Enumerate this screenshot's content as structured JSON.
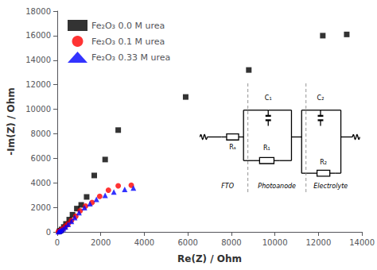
{
  "chart_data": {
    "type": "scatter",
    "x_label": "Re(Z) / Ohm",
    "y_label": "-Im(Z) / Ohm",
    "xlim": [
      0,
      14000
    ],
    "ylim": [
      0,
      18000
    ],
    "xticks": [
      0,
      2000,
      4000,
      6000,
      8000,
      10000,
      12000,
      14000
    ],
    "yticks": [
      0,
      2000,
      4000,
      6000,
      8000,
      10000,
      12000,
      14000,
      16000,
      18000
    ],
    "grid": false,
    "legend": "upper left",
    "series": [
      {
        "name": "Fe₂O₃ 0.0 M urea",
        "color": "black",
        "marker": "square",
        "x": [
          100,
          150,
          200,
          300,
          400,
          550,
          700,
          900,
          1100,
          1350,
          1700,
          2200,
          2800,
          5900,
          8800,
          12200,
          13300
        ],
        "values": [
          50,
          100,
          200,
          400,
          650,
          1000,
          1400,
          1900,
          2200,
          2850,
          4600,
          5900,
          8300,
          11000,
          13200,
          16000,
          16100
        ]
      },
      {
        "name": "Fe₂O₃ 0.1 M urea",
        "color": "red",
        "marker": "circle",
        "x": [
          50,
          100,
          150,
          200,
          280,
          380,
          500,
          650,
          850,
          1050,
          1300,
          1600,
          1950,
          2350,
          2800,
          3400
        ],
        "values": [
          20,
          50,
          100,
          170,
          290,
          460,
          660,
          920,
          1270,
          1720,
          2100,
          2400,
          2900,
          3400,
          3750,
          3800
        ]
      },
      {
        "name": "Fe₂O₃ 0.33 M urea",
        "color": "blue",
        "marker": "triangle",
        "x": [
          50,
          100,
          150,
          200,
          280,
          380,
          500,
          650,
          800,
          1000,
          1250,
          1500,
          1800,
          2200,
          2600,
          3100,
          3500
        ],
        "values": [
          18,
          45,
          90,
          155,
          260,
          410,
          610,
          860,
          1170,
          1570,
          1970,
          2300,
          2650,
          2980,
          3250,
          3470,
          3580
        ]
      }
    ],
    "annotations": [
      "Rₛ",
      "C₁",
      "R₁",
      "C₂",
      "R₂",
      "FTO",
      "Photoanode",
      "Electrolyte"
    ]
  }
}
